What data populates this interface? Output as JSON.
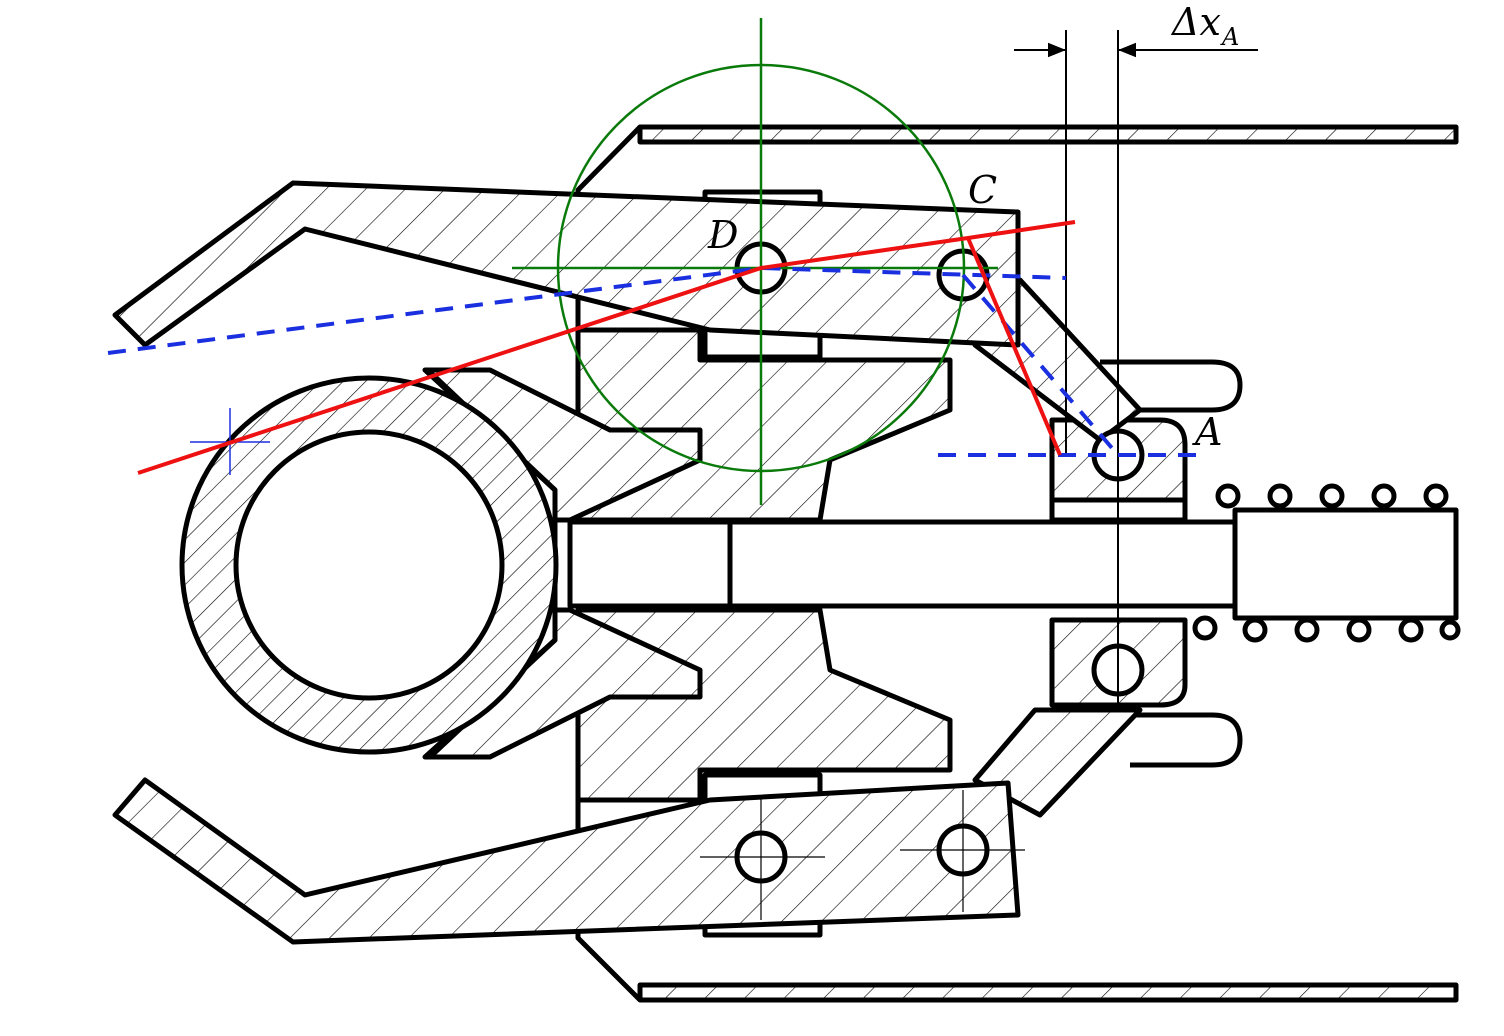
{
  "labels": {
    "point_c": "C",
    "point_d": "D",
    "point_a": "A",
    "delta_prefix": "Δx",
    "delta_sub": "A"
  },
  "colors": {
    "red_line": "#ee1111",
    "blue_dashed": "#1a2fe0",
    "green_circle": "#0a7a0a",
    "outline": "#000000"
  }
}
